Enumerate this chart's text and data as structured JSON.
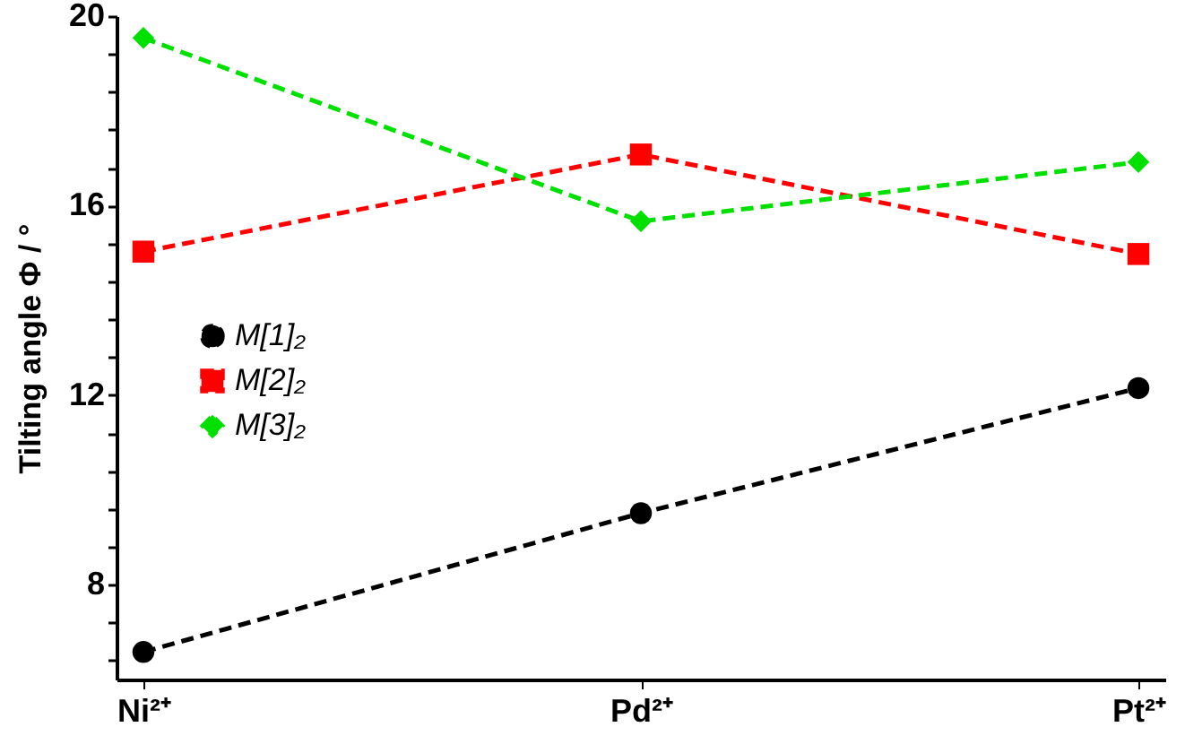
{
  "chart_data": {
    "type": "line",
    "ylabel": "Tilting angle Φ / °",
    "categories": [
      "Ni²⁺",
      "Pd²⁺",
      "Pt²⁺"
    ],
    "series": [
      {
        "name": "M[1]₂",
        "color": "#000000",
        "marker": "circle",
        "values": [
          6.58,
          9.51,
          12.15
        ]
      },
      {
        "name": "M[2]₂",
        "color": "#ff0000",
        "marker": "square",
        "values": [
          15.03,
          17.08,
          14.98
        ]
      },
      {
        "name": "M[3]₂",
        "color": "#00e000",
        "marker": "diamond",
        "values": [
          19.54,
          15.67,
          16.92
        ]
      }
    ],
    "ylim": [
      6,
      20
    ],
    "yticks": [
      {
        "value": 6.4,
        "label": null
      },
      {
        "value": 7.2,
        "label": null
      },
      8,
      {
        "value": 8.8,
        "label": null
      },
      {
        "value": 9.6,
        "label": null
      },
      {
        "value": 10.4,
        "label": null
      },
      {
        "value": 11.2,
        "label": null
      },
      12,
      {
        "value": 12.8,
        "label": null
      },
      {
        "value": 13.6,
        "label": null
      },
      {
        "value": 14.4,
        "label": null
      },
      {
        "value": 15.2,
        "label": null
      },
      16,
      {
        "value": 16.8,
        "label": null
      },
      {
        "value": 17.6,
        "label": null
      },
      {
        "value": 18.4,
        "label": null
      },
      {
        "value": 19.2,
        "label": null
      },
      20
    ],
    "grid": false,
    "legend": "left",
    "line_style": "dashed"
  }
}
